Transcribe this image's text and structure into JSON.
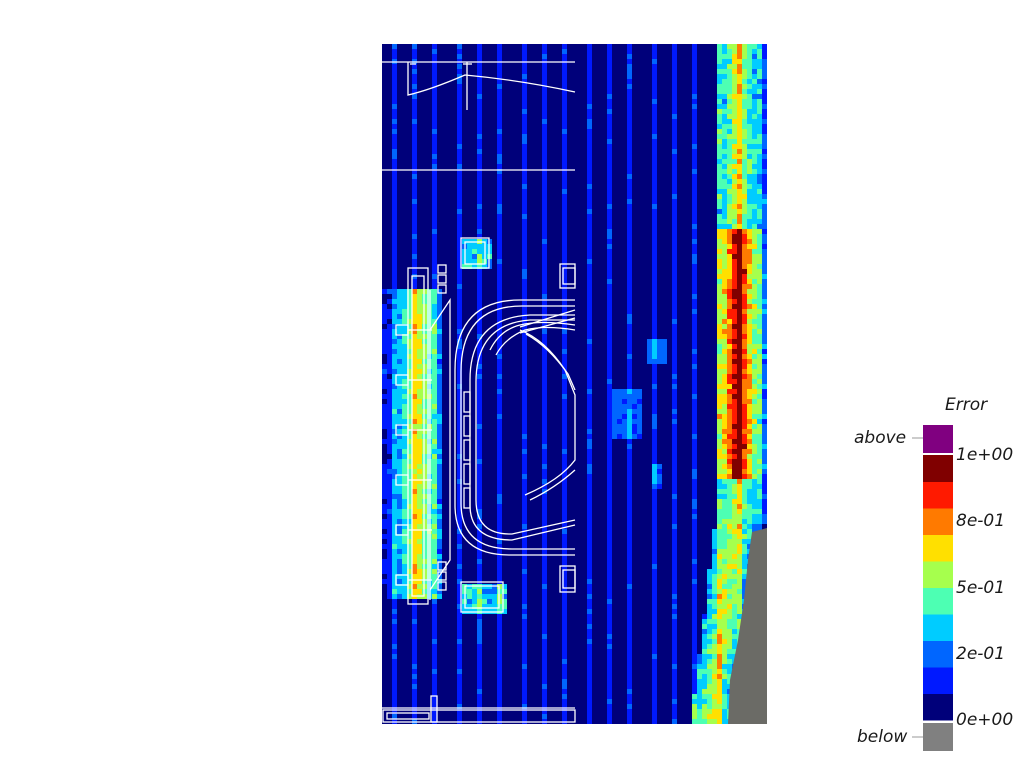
{
  "chart_data": {
    "type": "heatmap",
    "title": "",
    "colorbar": {
      "title": "Error",
      "range": [
        0,
        1
      ],
      "tick_labels": [
        "1e+00",
        "8e-01",
        "5e-01",
        "2e-01",
        "0e+00"
      ],
      "tick_values": [
        1.0,
        0.75,
        0.5,
        0.25,
        0.0
      ],
      "bins": [
        {
          "from": 0.0,
          "to": 0.1,
          "color": "#00007a"
        },
        {
          "from": 0.1,
          "to": 0.2,
          "color": "#0019ff"
        },
        {
          "from": 0.2,
          "to": 0.3,
          "color": "#0066ff"
        },
        {
          "from": 0.3,
          "to": 0.4,
          "color": "#00ccff"
        },
        {
          "from": 0.4,
          "to": 0.5,
          "color": "#4dffb3"
        },
        {
          "from": 0.5,
          "to": 0.6,
          "color": "#a6ff4d"
        },
        {
          "from": 0.6,
          "to": 0.7,
          "color": "#ffe000"
        },
        {
          "from": 0.7,
          "to": 0.8,
          "color": "#ff7a00"
        },
        {
          "from": 0.8,
          "to": 0.9,
          "color": "#ff1a00"
        },
        {
          "from": 0.9,
          "to": 1.0,
          "color": "#800000"
        }
      ],
      "above_label": "above",
      "above_color": "#800080",
      "below_label": "below",
      "below_color": "#808080"
    },
    "no_data_color": "#6b6b66"
  }
}
